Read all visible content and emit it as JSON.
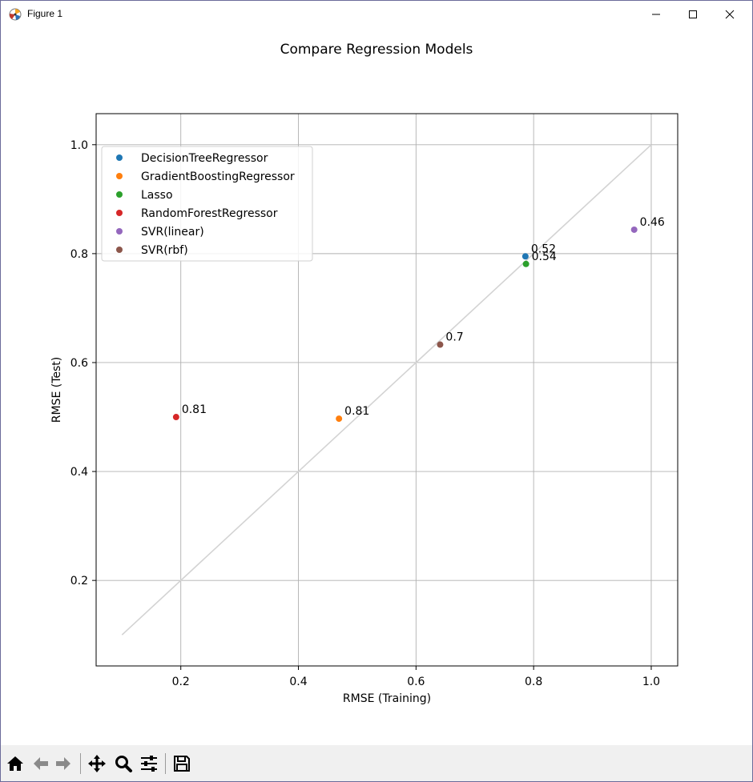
{
  "window": {
    "title": "Figure 1",
    "icons": {
      "app": "matplotlib-icon",
      "minimize": "minimize-icon",
      "maximize": "maximize-icon",
      "close": "close-icon"
    }
  },
  "toolbar": {
    "buttons": [
      {
        "name": "home-icon",
        "tooltip": ""
      },
      {
        "name": "back-arrow-icon"
      },
      {
        "name": "forward-arrow-icon"
      },
      {
        "name": "pan-move-icon"
      },
      {
        "name": "zoom-magnifier-icon"
      },
      {
        "name": "configure-subplots-icon"
      },
      {
        "name": "save-disk-icon"
      }
    ],
    "background": "#f0f0f0"
  },
  "chart_data": {
    "type": "scatter",
    "title": "Compare Regression Models",
    "xlabel": "RMSE (Training)",
    "ylabel": "RMSE (Test)",
    "xlim": [
      0.056,
      1.045
    ],
    "ylim": [
      0.043,
      1.057
    ],
    "xticks": [
      0.2,
      0.4,
      0.6,
      0.8,
      1.0
    ],
    "xtick_labels": [
      "0.2",
      "0.4",
      "0.6",
      "0.8",
      "1.0"
    ],
    "yticks": [
      0.2,
      0.4,
      0.6,
      0.8,
      1.0
    ],
    "ytick_labels": [
      "0.2",
      "0.4",
      "0.6",
      "0.8",
      "1.0"
    ],
    "grid": true,
    "legend_position": "upper-left",
    "reference_line": {
      "from": [
        0.1,
        0.1
      ],
      "to": [
        1.0,
        1.0
      ],
      "color": "#d3d3d3"
    },
    "series": [
      {
        "name": "DecisionTreeRegressor",
        "color": "#1f77b4",
        "x": 0.786,
        "y": 0.795,
        "label": "0.52"
      },
      {
        "name": "GradientBoostingRegressor",
        "color": "#ff7f0e",
        "x": 0.469,
        "y": 0.497,
        "label": "0.81"
      },
      {
        "name": "Lasso",
        "color": "#2ca02c",
        "x": 0.787,
        "y": 0.781,
        "label": "0.54"
      },
      {
        "name": "RandomForestRegressor",
        "color": "#d62728",
        "x": 0.192,
        "y": 0.5,
        "label": "0.81"
      },
      {
        "name": "SVR(linear)",
        "color": "#9467bd",
        "x": 0.971,
        "y": 0.844,
        "label": "0.46"
      },
      {
        "name": "SVR(rbf)",
        "color": "#8c564b",
        "x": 0.641,
        "y": 0.633,
        "label": "0.7"
      }
    ]
  }
}
